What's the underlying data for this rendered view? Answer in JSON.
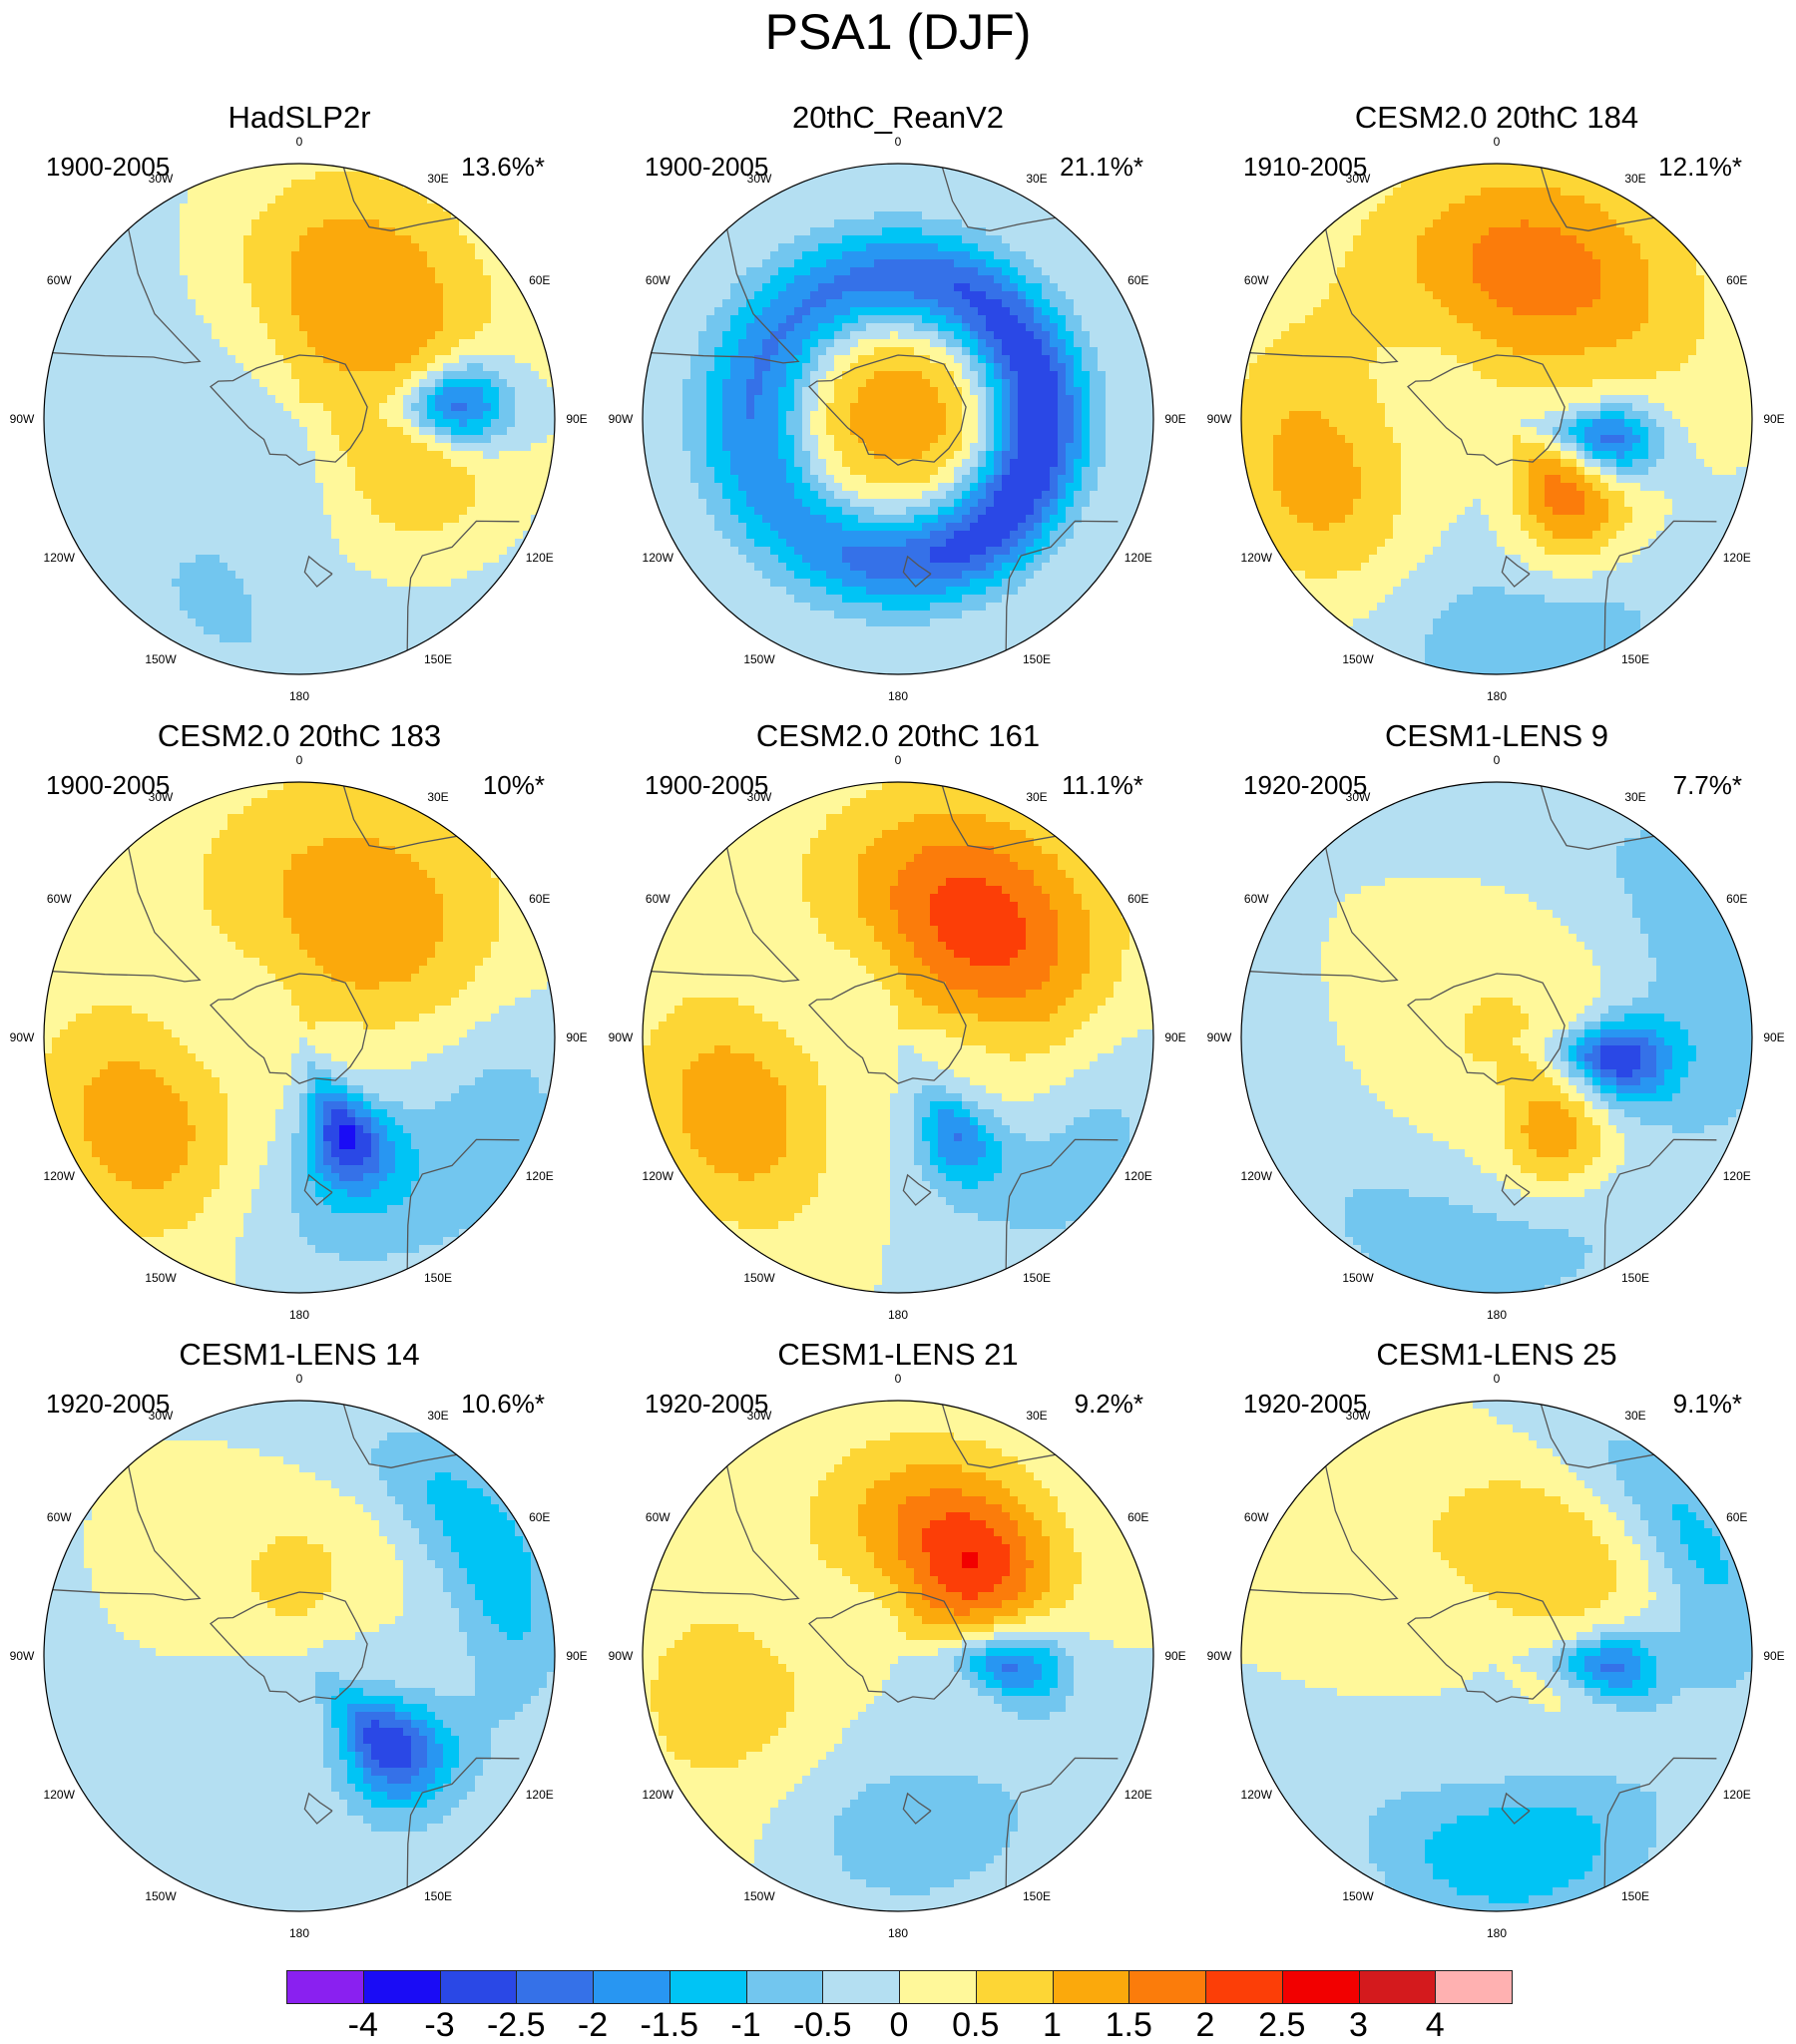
{
  "title": "PSA1 (DJF)",
  "panels": [
    {
      "title": "HadSLP2r",
      "period": "1900-2005",
      "variance": "13.6%*",
      "blobs": [
        {
          "lon": 85,
          "r": 0.62,
          "w": 0.15,
          "a": 0.18,
          "v": -3.0
        },
        {
          "lon": 20,
          "r": 0.58,
          "w": 0.35,
          "a": 0.6,
          "v": 1.7
        },
        {
          "lon": 110,
          "r": 0.5,
          "w": 0.3,
          "a": 0.7,
          "v": 1.3
        },
        {
          "lon": 180,
          "r": 0.7,
          "w": 0.5,
          "a": 1.0,
          "v": -0.6
        },
        {
          "lon": 0,
          "r": 0.8,
          "w": 0.4,
          "a": 1.2,
          "v": -0.4
        }
      ]
    },
    {
      "title": "20thC_ReanV2",
      "period": "1900-2005",
      "variance": "21.1%*",
      "blobs": [
        {
          "lon": 0,
          "r": 0.0,
          "w": 0.28,
          "a": 6.3,
          "v": 1.4
        },
        {
          "lon": 45,
          "r": 0.55,
          "w": 0.14,
          "a": 1.6,
          "v": -2.5
        },
        {
          "lon": 160,
          "r": 0.55,
          "w": 0.14,
          "a": 1.2,
          "v": -1.6
        },
        {
          "lon": 270,
          "r": 0.6,
          "w": 0.18,
          "a": 0.8,
          "v": -0.9
        }
      ]
    },
    {
      "title": "CESM2.0 20thC 184",
      "period": "1910-2005",
      "variance": "12.1%*",
      "blobs": [
        {
          "lon": 100,
          "r": 0.45,
          "w": 0.14,
          "a": 0.2,
          "v": -2.5
        },
        {
          "lon": 15,
          "r": 0.6,
          "w": 0.3,
          "a": 0.7,
          "v": 1.8
        },
        {
          "lon": 140,
          "r": 0.42,
          "w": 0.2,
          "a": 0.35,
          "v": 1.8
        },
        {
          "lon": 250,
          "r": 0.75,
          "w": 0.25,
          "a": 0.5,
          "v": 1.3
        },
        {
          "lon": 175,
          "r": 0.85,
          "w": 0.25,
          "a": 0.6,
          "v": -0.9
        }
      ]
    },
    {
      "title": "CESM2.0 20thC 183",
      "period": "1900-2005",
      "variance": "10%*",
      "blobs": [
        {
          "lon": 155,
          "r": 0.42,
          "w": 0.16,
          "a": 0.25,
          "v": -3.0
        },
        {
          "lon": 30,
          "r": 0.55,
          "w": 0.35,
          "a": 0.8,
          "v": 1.4
        },
        {
          "lon": 240,
          "r": 0.72,
          "w": 0.25,
          "a": 0.45,
          "v": 1.4
        },
        {
          "lon": 110,
          "r": 0.8,
          "w": 0.25,
          "a": 0.5,
          "v": -0.9
        },
        {
          "lon": 170,
          "r": 0.75,
          "w": 0.2,
          "a": 0.5,
          "v": -0.5
        }
      ]
    },
    {
      "title": "CESM2.0 20thC 161",
      "period": "1900-2005",
      "variance": "11.1%*",
      "blobs": [
        {
          "lon": 150,
          "r": 0.45,
          "w": 0.15,
          "a": 0.22,
          "v": -2.0
        },
        {
          "lon": 35,
          "r": 0.55,
          "w": 0.3,
          "a": 0.7,
          "v": 2.3
        },
        {
          "lon": 245,
          "r": 0.7,
          "w": 0.25,
          "a": 0.45,
          "v": 1.4
        },
        {
          "lon": 120,
          "r": 0.85,
          "w": 0.2,
          "a": 0.5,
          "v": -0.8
        }
      ]
    },
    {
      "title": "CESM1-LENS 9",
      "period": "1920-2005",
      "variance": "7.7%*",
      "blobs": [
        {
          "lon": 100,
          "r": 0.48,
          "w": 0.15,
          "a": 0.22,
          "v": -3.0
        },
        {
          "lon": 150,
          "r": 0.45,
          "w": 0.15,
          "a": 0.3,
          "v": 1.3
        },
        {
          "lon": 0,
          "r": 0.0,
          "w": 0.25,
          "a": 6.3,
          "v": 0.6
        },
        {
          "lon": 70,
          "r": 0.9,
          "w": 0.2,
          "a": 0.6,
          "v": -0.9
        },
        {
          "lon": 190,
          "r": 0.85,
          "w": 0.2,
          "a": 0.6,
          "v": -0.8
        }
      ]
    },
    {
      "title": "CESM1-LENS 14",
      "period": "1920-2005",
      "variance": "10.6%*",
      "blobs": [
        {
          "lon": 135,
          "r": 0.5,
          "w": 0.18,
          "a": 0.25,
          "v": -2.7
        },
        {
          "lon": 0,
          "r": 0.3,
          "w": 0.25,
          "a": 0.8,
          "v": 0.7
        },
        {
          "lon": 60,
          "r": 0.85,
          "w": 0.15,
          "a": 0.5,
          "v": -1.4
        },
        {
          "lon": 140,
          "r": 0.2,
          "w": 0.4,
          "a": 1.5,
          "v": -0.3
        }
      ]
    },
    {
      "title": "CESM1-LENS 21",
      "period": "1920-2005",
      "variance": "9.2%*",
      "blobs": [
        {
          "lon": 95,
          "r": 0.45,
          "w": 0.15,
          "a": 0.2,
          "v": -2.2
        },
        {
          "lon": 15,
          "r": 0.5,
          "w": 0.25,
          "a": 0.6,
          "v": 1.5
        },
        {
          "lon": 45,
          "r": 0.45,
          "w": 0.2,
          "a": 0.4,
          "v": 1.4
        },
        {
          "lon": 180,
          "r": 0.7,
          "w": 0.25,
          "a": 0.7,
          "v": -0.8
        },
        {
          "lon": 250,
          "r": 0.7,
          "w": 0.3,
          "a": 0.5,
          "v": 0.9
        }
      ]
    },
    {
      "title": "CESM1-LENS 25",
      "period": "1920-2005",
      "variance": "9.1%*",
      "blobs": [
        {
          "lon": 95,
          "r": 0.45,
          "w": 0.15,
          "a": 0.2,
          "v": -2.3
        },
        {
          "lon": 20,
          "r": 0.45,
          "w": 0.25,
          "a": 0.8,
          "v": 0.9
        },
        {
          "lon": 175,
          "r": 0.78,
          "w": 0.2,
          "a": 0.5,
          "v": -1.5
        },
        {
          "lon": 60,
          "r": 0.9,
          "w": 0.15,
          "a": 0.5,
          "v": -1.2
        }
      ]
    }
  ],
  "lon_labels": [
    "0",
    "30E",
    "60E",
    "90E",
    "120E",
    "150E",
    "180",
    "150W",
    "120W",
    "90W",
    "60W",
    "30W"
  ],
  "chart_data": {
    "type": "heatmap",
    "title": "PSA1 (DJF)",
    "projection": "south-polar stereographic",
    "panel_titles": [
      "HadSLP2r",
      "20thC_ReanV2",
      "CESM2.0 20thC 184",
      "CESM2.0 20thC 183",
      "CESM2.0 20thC 161",
      "CESM1-LENS 9",
      "CESM1-LENS 14",
      "CESM1-LENS 21",
      "CESM1-LENS 25"
    ],
    "periods": [
      "1900-2005",
      "1900-2005",
      "1910-2005",
      "1900-2005",
      "1900-2005",
      "1920-2005",
      "1920-2005",
      "1920-2005",
      "1920-2005"
    ],
    "variance_explained": [
      "13.6%*",
      "21.1%*",
      "12.1%*",
      "10%*",
      "11.1%*",
      "7.7%*",
      "10.6%*",
      "9.2%*",
      "9.1%*"
    ],
    "colorbar_levels": [
      -4,
      -3,
      -2.5,
      -2,
      -1.5,
      -1,
      -0.5,
      0,
      0.5,
      1,
      1.5,
      2,
      2.5,
      3,
      4
    ],
    "colorbar_labels": [
      "-4",
      "-3",
      "-2.5",
      "-2",
      "-1.5",
      "-1",
      "-0.5",
      "0",
      "0.5",
      "1",
      "1.5",
      "2",
      "2.5",
      "3",
      "4"
    ],
    "colorbar_colors": [
      "#8a20f0",
      "#1a0cf5",
      "#2a48e6",
      "#3571e8",
      "#2896f2",
      "#00c4f5",
      "#72c6ef",
      "#b4dff2",
      "#fff89a",
      "#fdd635",
      "#fba90c",
      "#fb7c0b",
      "#fc3e07",
      "#f20000",
      "#d41a1d",
      "#ffb1b1"
    ]
  }
}
